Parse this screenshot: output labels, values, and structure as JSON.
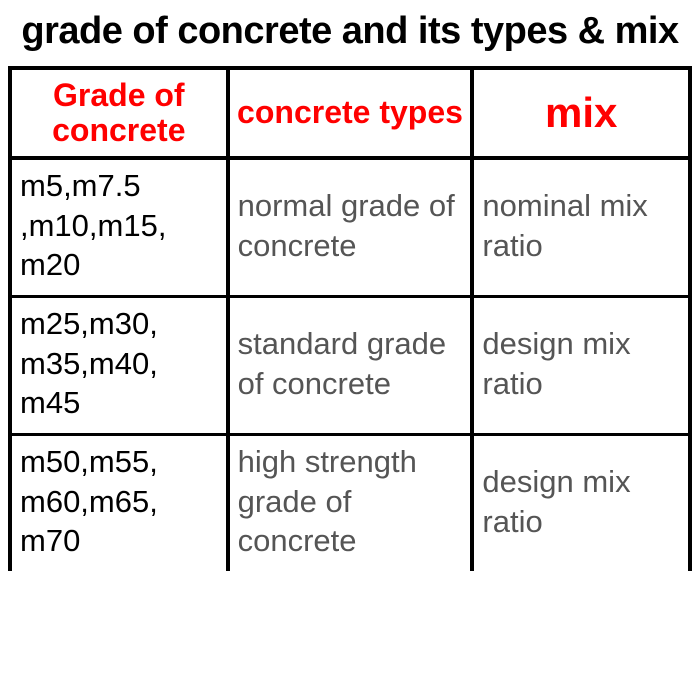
{
  "title": "grade of concrete and its types &  mix",
  "title_fontsize": 38,
  "title_color": "#000000",
  "background_color": "#ffffff",
  "table": {
    "type": "table",
    "border_color": "#000000",
    "outer_border_width": 4,
    "inner_border_width": 3,
    "header_text_color": "#ff0000",
    "columns": [
      {
        "label": "Grade of concrete",
        "fontsize": 32,
        "text_color": "#000000",
        "width_pct": 32
      },
      {
        "label": "concrete types",
        "fontsize": 32,
        "text_color": "#555555",
        "width_pct": 36
      },
      {
        "label": "mix",
        "fontsize": 42,
        "text_color": "#555555",
        "width_pct": 32
      }
    ],
    "body_fontsize": 31,
    "rows": [
      {
        "grade": "m5,m7.5 ,m10,m15, m20",
        "type": "normal grade of concrete",
        "mix": "nominal mix ratio"
      },
      {
        "grade": "m25,m30, m35,m40, m45",
        "type": "standard grade of concrete",
        "mix": "design mix ratio"
      },
      {
        "grade": "m50,m55, m60,m65, m70",
        "type": "high strength grade of concrete",
        "mix": "design mix ratio"
      }
    ]
  }
}
